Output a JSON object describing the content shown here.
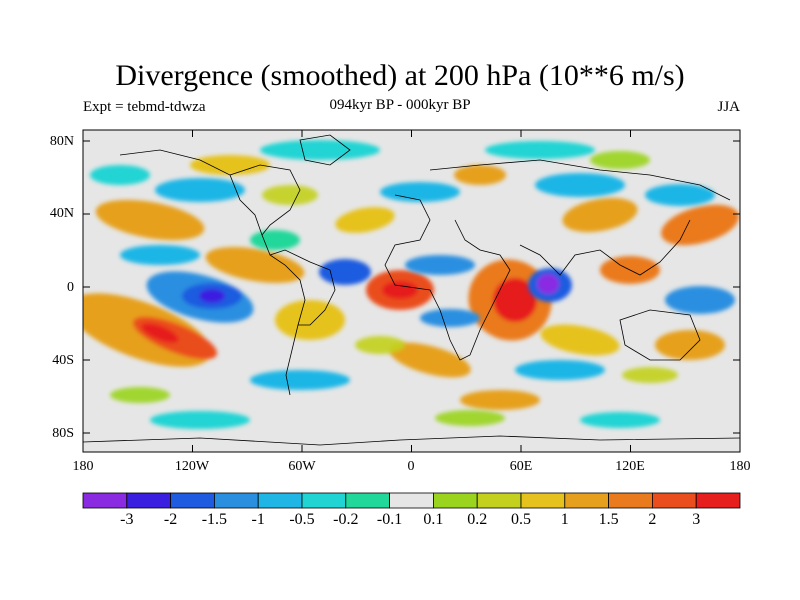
{
  "title": "Divergence (smoothed) at 200 hPa (10**6 m/s)",
  "subtitle_left": "Expt = tebmd-tdwza",
  "subtitle_center": "094kyr BP - 000kyr BP",
  "subtitle_right": "JJA",
  "lat_axis": [
    "80N",
    "40N",
    "0",
    "40S",
    "80S"
  ],
  "lon_axis": [
    "180",
    "120W",
    "60W",
    "0",
    "60E",
    "120E",
    "180"
  ],
  "colorbar": {
    "colors": [
      "#8a2be2",
      "#3a1fe0",
      "#1e5be0",
      "#2b8fe0",
      "#1fb6e6",
      "#20d4d4",
      "#21d79a",
      "#e6e6e6",
      "#9ad41e",
      "#c3d11e",
      "#e6c21e",
      "#e6a01e",
      "#ea7a1e",
      "#ea4e1e",
      "#e61e1e"
    ],
    "labels": [
      "-3",
      "-2",
      "-1.5",
      "-1",
      "-0.5",
      "-0.2",
      "-0.1",
      "0.1",
      "0.2",
      "0.5",
      "1",
      "1.5",
      "2",
      "3"
    ]
  },
  "map_colors": {
    "background": "#e6e6e6",
    "coast": "#000000"
  }
}
